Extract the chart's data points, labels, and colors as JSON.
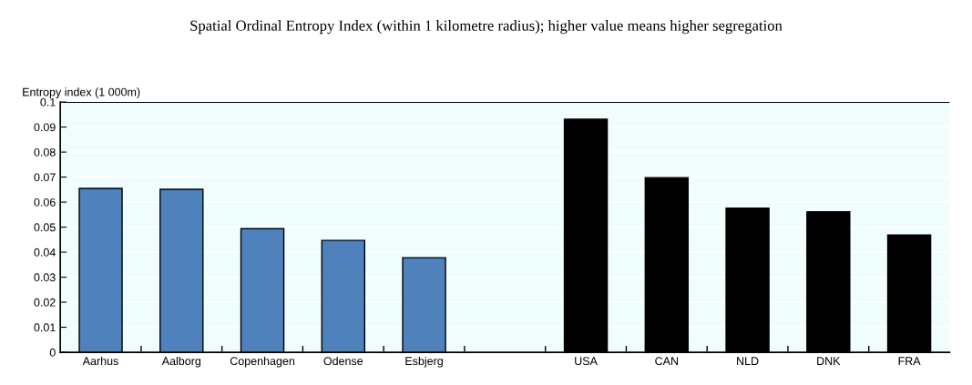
{
  "chart_data": {
    "type": "bar",
    "title": "Spatial Ordinal Entropy Index (within 1 kilometre radius); higher value means higher segregation",
    "ylabel": "Entropy index (1 000m)",
    "categories": [
      "Aarhus",
      "Aalborg",
      "Copenhagen",
      "Odense",
      "Esbjerg",
      null,
      "USA",
      "CAN",
      "NLD",
      "DNK",
      "FRA"
    ],
    "values": [
      0.0655,
      0.0651,
      0.0494,
      0.0447,
      0.0378,
      null,
      0.0931,
      0.0698,
      0.0576,
      0.0561,
      0.0469
    ],
    "colors": [
      "#4f81bd",
      "#4f81bd",
      "#4f81bd",
      "#4f81bd",
      "#4f81bd",
      "#4f81bd",
      "#000000",
      "#000000",
      "#000000",
      "#000000",
      "#000000"
    ],
    "ylim": [
      0,
      0.1
    ],
    "yticks": [
      0,
      0.01,
      0.02,
      0.03,
      0.04,
      0.05,
      0.06,
      0.07,
      0.08,
      0.09,
      0.1
    ],
    "grid": "y"
  }
}
